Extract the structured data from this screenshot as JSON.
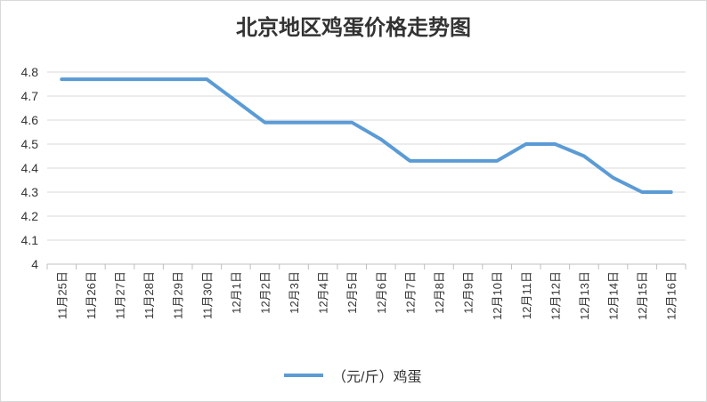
{
  "chart_data": {
    "type": "line",
    "title": "北京地区鸡蛋价格走势图",
    "categories": [
      "11月25日",
      "11月26日",
      "11月27日",
      "11月28日",
      "11月29日",
      "11月30日",
      "12月1日",
      "12月2日",
      "12月3日",
      "12月4日",
      "12月5日",
      "12月6日",
      "12月7日",
      "12月8日",
      "12月9日",
      "12月10日",
      "12月11日",
      "12月12日",
      "12月13日",
      "12月14日",
      "12月15日",
      "12月16日"
    ],
    "series": [
      {
        "name": "（元/斤）鸡蛋",
        "values": [
          4.77,
          4.77,
          4.77,
          4.77,
          4.77,
          4.77,
          4.68,
          4.59,
          4.59,
          4.59,
          4.59,
          4.52,
          4.43,
          4.43,
          4.43,
          4.43,
          4.5,
          4.5,
          4.45,
          4.36,
          4.3,
          4.3
        ],
        "color": "#5b9bd5"
      }
    ],
    "yticks": [
      "4",
      "4.1",
      "4.2",
      "4.3",
      "4.4",
      "4.5",
      "4.6",
      "4.7",
      "4.8"
    ],
    "ylim": [
      4,
      4.8
    ],
    "grid": true,
    "legend_position": "bottom"
  }
}
